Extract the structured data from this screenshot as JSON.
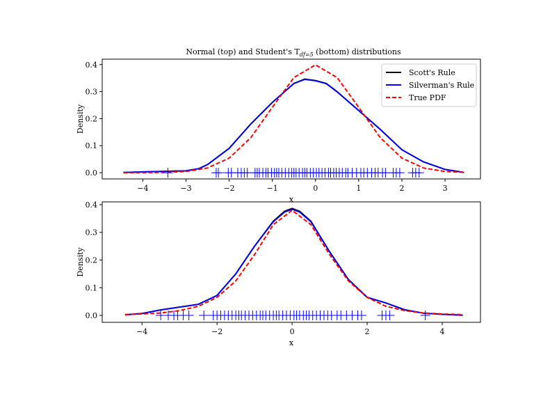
{
  "title_main": "Normal (top) and Student's T",
  "title_sub": "df=5",
  "title_end": " (bottom) distributions",
  "legend": [
    "Scott's Rule",
    "Silverman's Rule",
    "True PDF"
  ],
  "colors": {
    "scott": "#000000",
    "silverman": "#0000ff",
    "true_pdf": "#ff0000",
    "rug": "#0000ff"
  },
  "chart_data": [
    {
      "type": "line",
      "xlabel": "x",
      "ylabel": "Density",
      "xlim": [
        -4.94,
        3.82
      ],
      "ylim": [
        -0.023,
        0.42
      ],
      "xticks": [
        -4,
        -3,
        -2,
        -1,
        0,
        1,
        2,
        3
      ],
      "yticks": [
        "0.0",
        "0.1",
        "0.2",
        "0.3",
        "0.4"
      ],
      "legend_position": "top-right",
      "series": [
        {
          "name": "Scott's Rule",
          "x": [
            -4.45,
            -4,
            -3.5,
            -3,
            -2.7,
            -2.5,
            -2,
            -1.5,
            -1,
            -0.5,
            -0.25,
            0,
            0.25,
            0.5,
            1,
            1.5,
            2,
            2.5,
            3,
            3.44
          ],
          "y": [
            0.001,
            0.003,
            0.005,
            0.007,
            0.015,
            0.03,
            0.09,
            0.18,
            0.26,
            0.33,
            0.346,
            0.341,
            0.33,
            0.3,
            0.23,
            0.16,
            0.085,
            0.04,
            0.012,
            0.001
          ]
        },
        {
          "name": "Silverman's Rule",
          "x": [
            -4.45,
            -4,
            -3.5,
            -3,
            -2.7,
            -2.5,
            -2,
            -1.5,
            -1,
            -0.5,
            -0.25,
            0,
            0.25,
            0.5,
            1,
            1.5,
            2,
            2.5,
            3,
            3.44
          ],
          "y": [
            0.001,
            0.003,
            0.005,
            0.007,
            0.015,
            0.03,
            0.09,
            0.18,
            0.26,
            0.33,
            0.345,
            0.34,
            0.329,
            0.299,
            0.23,
            0.16,
            0.085,
            0.04,
            0.012,
            0.001
          ]
        },
        {
          "name": "True PDF",
          "x": [
            -4.45,
            -4,
            -3.5,
            -3,
            -2.5,
            -2,
            -1.5,
            -1,
            -0.5,
            0,
            0.5,
            1,
            1.5,
            2,
            2.5,
            3,
            3.44
          ],
          "y": [
            2e-05,
            0.0001,
            0.0009,
            0.0044,
            0.0175,
            0.054,
            0.1295,
            0.242,
            0.352,
            0.399,
            0.352,
            0.242,
            0.1295,
            0.054,
            0.0175,
            0.0044,
            0.0011
          ]
        }
      ],
      "rug": [
        -3.42,
        -2.3,
        -2.25,
        -2.02,
        -1.95,
        -1.8,
        -1.72,
        -1.65,
        -1.58,
        -1.4,
        -1.35,
        -1.3,
        -1.22,
        -1.15,
        -1.1,
        -1.02,
        -0.95,
        -0.9,
        -0.85,
        -0.78,
        -0.7,
        -0.62,
        -0.55,
        -0.5,
        -0.45,
        -0.38,
        -0.3,
        -0.25,
        -0.2,
        -0.12,
        -0.05,
        0.02,
        0.08,
        0.15,
        0.22,
        0.3,
        0.35,
        0.42,
        0.48,
        0.55,
        0.62,
        0.7,
        0.75,
        0.85,
        0.95,
        1.05,
        1.12,
        1.2,
        1.3,
        1.38,
        1.45,
        1.55,
        1.62,
        1.8,
        1.87,
        1.95,
        2.25,
        2.32,
        2.4
      ]
    },
    {
      "type": "line",
      "xlabel": "x",
      "ylabel": "Density",
      "xlim": [
        -5.06,
        5.02
      ],
      "ylim": [
        -0.025,
        0.41
      ],
      "xticks": [
        -4,
        -2,
        0,
        2,
        4
      ],
      "yticks": [
        "0.0",
        "0.1",
        "0.2",
        "0.3",
        "0.4"
      ],
      "series": [
        {
          "name": "Scott's Rule",
          "x": [
            -4.45,
            -4,
            -3.5,
            -3,
            -2.5,
            -2,
            -1.5,
            -1,
            -0.5,
            -0.2,
            0,
            0.2,
            0.5,
            1,
            1.5,
            2,
            2.5,
            3,
            3.5,
            4,
            4.55
          ],
          "y": [
            0.002,
            0.007,
            0.02,
            0.03,
            0.04,
            0.072,
            0.15,
            0.25,
            0.34,
            0.376,
            0.386,
            0.376,
            0.34,
            0.23,
            0.13,
            0.065,
            0.045,
            0.02,
            0.008,
            0.004,
            0.001
          ]
        },
        {
          "name": "Silverman's Rule",
          "x": [
            -4.45,
            -4,
            -3.5,
            -3,
            -2.5,
            -2,
            -1.5,
            -1,
            -0.5,
            -0.2,
            0,
            0.2,
            0.5,
            1,
            1.5,
            2,
            2.5,
            3,
            3.5,
            4,
            4.55
          ],
          "y": [
            0.002,
            0.007,
            0.02,
            0.03,
            0.04,
            0.072,
            0.15,
            0.25,
            0.338,
            0.373,
            0.383,
            0.373,
            0.338,
            0.23,
            0.13,
            0.066,
            0.045,
            0.021,
            0.008,
            0.004,
            0.001
          ]
        },
        {
          "name": "True PDF",
          "x": [
            -4.45,
            -4,
            -3.5,
            -3,
            -2.5,
            -2,
            -1.5,
            -1,
            -0.5,
            0,
            0.5,
            1,
            1.5,
            2,
            2.5,
            3,
            3.5,
            4,
            4.55
          ],
          "y": [
            0.0032,
            0.0051,
            0.0086,
            0.0173,
            0.0329,
            0.0651,
            0.1245,
            0.2197,
            0.3279,
            0.3796,
            0.3279,
            0.2197,
            0.1245,
            0.0651,
            0.0329,
            0.0173,
            0.0086,
            0.0051,
            0.003
          ]
        }
      ],
      "rug": [
        -3.5,
        -3.3,
        -3.15,
        -3.05,
        -2.9,
        -2.75,
        -2.35,
        -2.1,
        -2.0,
        -1.9,
        -1.8,
        -1.7,
        -1.6,
        -1.5,
        -1.42,
        -1.35,
        -1.25,
        -1.15,
        -1.05,
        -0.95,
        -0.85,
        -0.78,
        -0.7,
        -0.6,
        -0.5,
        -0.42,
        -0.35,
        -0.25,
        -0.15,
        -0.05,
        0.05,
        0.12,
        0.2,
        0.3,
        0.38,
        0.45,
        0.55,
        0.65,
        0.75,
        0.85,
        0.95,
        1.05,
        1.2,
        1.3,
        1.45,
        1.6,
        1.75,
        1.85,
        2.4,
        2.5,
        2.6,
        3.55
      ]
    }
  ]
}
